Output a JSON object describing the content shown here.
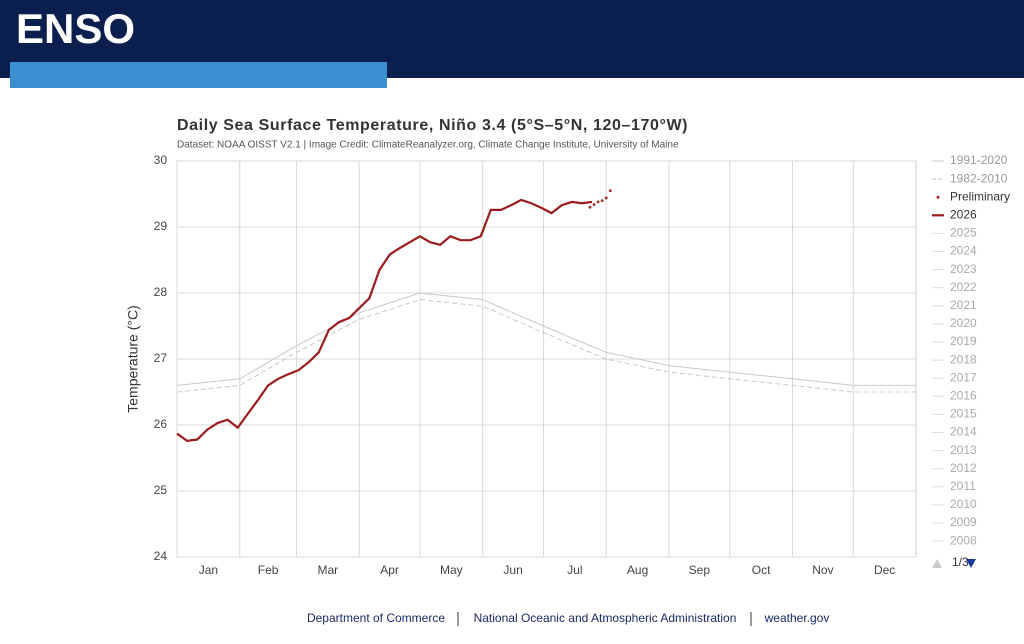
{
  "header": {
    "title": "ENSO"
  },
  "chart_data": {
    "type": "line",
    "title": "Daily Sea Surface Temperature, Niño 3.4 (5°S–5°N, 120–170°W)",
    "subtitle": "Dataset: NOAA OISST V2.1 | Image Credit: ClimateReanalyzer.org, Climate Change Institute, University of Maine",
    "y_label": "Temperature (°C)",
    "xlim": [
      0,
      365
    ],
    "xticks": [
      {
        "value": 0,
        "label": "Jan"
      },
      {
        "value": 31,
        "label": "Feb"
      },
      {
        "value": 59,
        "label": "Mar"
      },
      {
        "value": 90,
        "label": "Apr"
      },
      {
        "value": 120,
        "label": "May"
      },
      {
        "value": 151,
        "label": "Jun"
      },
      {
        "value": 181,
        "label": "Jul"
      },
      {
        "value": 212,
        "label": "Aug"
      },
      {
        "value": 243,
        "label": "Sep"
      },
      {
        "value": 273,
        "label": "Oct"
      },
      {
        "value": 304,
        "label": "Nov"
      },
      {
        "value": 334,
        "label": "Dec"
      }
    ],
    "ylim": [
      24,
      30
    ],
    "yticks": [
      24,
      25,
      26,
      27,
      28,
      29,
      30
    ],
    "grid": true,
    "series": [
      {
        "name": "1991-2020",
        "color": "#c8c8c8",
        "style": "solid",
        "x": [
          0,
          31,
          59,
          90,
          120,
          151,
          181,
          212,
          243,
          273,
          304,
          334,
          365
        ],
        "values": [
          26.6,
          26.7,
          27.2,
          27.7,
          28.0,
          27.9,
          27.5,
          27.1,
          26.9,
          26.8,
          26.7,
          26.6,
          26.6
        ]
      },
      {
        "name": "1982-2010",
        "color": "#c8c8c8",
        "style": "dashed",
        "x": [
          0,
          31,
          59,
          90,
          120,
          151,
          181,
          212,
          243,
          273,
          304,
          334,
          365
        ],
        "values": [
          26.5,
          26.6,
          27.1,
          27.6,
          27.9,
          27.8,
          27.4,
          27.0,
          26.8,
          26.7,
          26.6,
          26.5,
          26.5
        ]
      },
      {
        "name": "Preliminary",
        "color": "#a52a2a",
        "style": "dots",
        "x": [
          204,
          206,
          208,
          210,
          212,
          214
        ],
        "values": [
          29.3,
          29.34,
          29.38,
          29.4,
          29.44,
          29.55
        ]
      },
      {
        "name": "2026",
        "color": "#9b1c1c",
        "style": "bold",
        "x": [
          0,
          5,
          10,
          15,
          20,
          25,
          30,
          35,
          40,
          45,
          50,
          55,
          60,
          65,
          70,
          75,
          80,
          85,
          90,
          95,
          100,
          105,
          110,
          115,
          120,
          125,
          130,
          135,
          140,
          145,
          150,
          155,
          160,
          165,
          170,
          175,
          180,
          185,
          190,
          195,
          200,
          205
        ],
        "values": [
          25.87,
          25.76,
          25.78,
          25.93,
          26.03,
          26.08,
          25.96,
          26.17,
          26.38,
          26.6,
          26.7,
          26.77,
          26.83,
          26.95,
          27.1,
          27.44,
          27.56,
          27.62,
          27.77,
          27.92,
          28.35,
          28.58,
          28.68,
          28.77,
          28.86,
          28.77,
          28.73,
          28.86,
          28.8,
          28.8,
          28.86,
          29.26,
          29.26,
          29.33,
          29.41,
          29.36,
          29.29,
          29.21,
          29.33,
          29.38,
          29.36,
          29.38
        ]
      }
    ],
    "hidden_legend": [
      "2025",
      "2024",
      "2023",
      "2022",
      "2021",
      "2020",
      "2019",
      "2018",
      "2017",
      "2016",
      "2015",
      "2014",
      "2013",
      "2012",
      "2011",
      "2010",
      "2009",
      "2008"
    ],
    "legend_page": "1/3"
  },
  "footer": {
    "links": [
      "Department of Commerce",
      "National Oceanic and Atmospheric Administration",
      "weather.gov"
    ]
  }
}
